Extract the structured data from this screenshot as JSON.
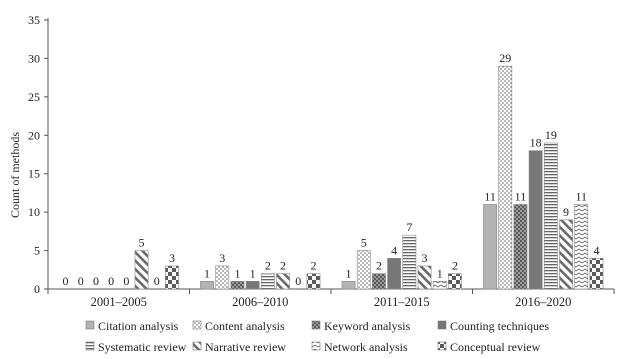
{
  "chart_data": {
    "type": "bar",
    "title": "",
    "xlabel": "",
    "ylabel": "Count of methods",
    "ylim": [
      0,
      35
    ],
    "yticks": [
      0,
      5,
      10,
      15,
      20,
      25,
      30,
      35
    ],
    "grid": false,
    "legend_position": "bottom",
    "categories": [
      "2001–2005",
      "2006–2010",
      "2011–2015",
      "2016–2020"
    ],
    "series": [
      {
        "name": "Citation analysis",
        "values": [
          0,
          1,
          1,
          11
        ],
        "color": "#b3b3b3",
        "pattern": "solid-light"
      },
      {
        "name": "Content analysis",
        "values": [
          0,
          3,
          5,
          29
        ],
        "color": "#8c8c8c",
        "pattern": "dots"
      },
      {
        "name": "Keyword analysis",
        "values": [
          0,
          1,
          2,
          11
        ],
        "color": "#7a7a7a",
        "pattern": "checker-dots"
      },
      {
        "name": "Counting techniques",
        "values": [
          0,
          1,
          4,
          18
        ],
        "color": "#777777",
        "pattern": "solid-dark"
      },
      {
        "name": "Systematic review",
        "values": [
          0,
          2,
          7,
          19
        ],
        "color": "#7a7a7a",
        "pattern": "horizontal-lines"
      },
      {
        "name": "Narrative review",
        "values": [
          5,
          2,
          3,
          9
        ],
        "color": "#7a7a7a",
        "pattern": "diagonal"
      },
      {
        "name": "Network analysis",
        "values": [
          0,
          0,
          1,
          11
        ],
        "color": "#8c8c8c",
        "pattern": "zigzag"
      },
      {
        "name": "Conceptual review",
        "values": [
          3,
          2,
          2,
          4
        ],
        "color": "#6e6e6e",
        "pattern": "checker"
      }
    ]
  }
}
